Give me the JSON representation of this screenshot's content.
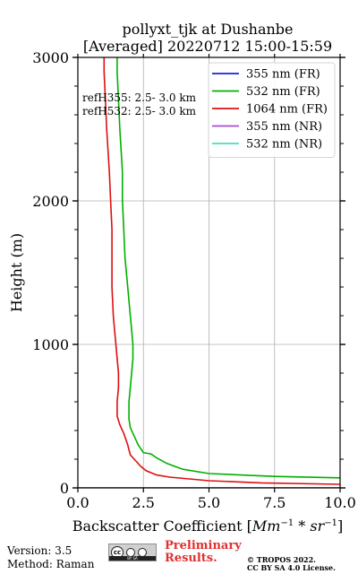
{
  "chart_data": {
    "type": "line",
    "title_lines": [
      "pollyxt_tjk at Dushanbe",
      "[Averaged] 20220712 15:00-15:59"
    ],
    "xlabel_prefix": "Backscatter Coefficient [",
    "xlabel_math": "Mm",
    "xlabel_sup1": "−1",
    "xlabel_mid": " * ",
    "xlabel_math2": "sr",
    "xlabel_sup2": "−1",
    "xlabel_suffix": "]",
    "ylabel": "Height (m)",
    "xlim": [
      0,
      10
    ],
    "ylim": [
      0,
      3000
    ],
    "xticks": [
      "0.0",
      "2.5",
      "5.0",
      "7.5",
      "10.0"
    ],
    "xtick_values": [
      0,
      2.5,
      5,
      7.5,
      10
    ],
    "yticks": [
      "0",
      "1000",
      "2000",
      "3000"
    ],
    "ytick_values": [
      0,
      1000,
      2000,
      3000
    ],
    "grid": true,
    "legend_position": "top-right",
    "annotations": [
      "refH355:  2.5- 3.0 km",
      "refH532:  2.5- 3.0 km"
    ],
    "series": [
      {
        "name": "355 nm (FR)",
        "color": "#1f1fd6",
        "x": [
          0,
          10
        ],
        "y": [
          0,
          0
        ]
      },
      {
        "name": "532 nm (FR)",
        "color": "#00b000",
        "x": [
          10.0,
          7.5,
          5.0,
          4.0,
          3.4,
          3.0,
          2.8,
          2.7,
          2.5,
          2.3,
          2.15,
          2.0,
          1.95,
          1.95,
          2.0,
          2.05,
          2.1,
          2.1,
          2.05,
          2.0,
          1.9,
          1.8,
          1.75,
          1.7,
          1.7,
          1.6,
          1.55,
          1.5,
          1.5
        ],
        "y": [
          70,
          80,
          100,
          130,
          170,
          210,
          235,
          240,
          245,
          300,
          360,
          420,
          480,
          600,
          700,
          800,
          900,
          1000,
          1100,
          1200,
          1400,
          1600,
          1800,
          2000,
          2200,
          2500,
          2700,
          2900,
          3000
        ]
      },
      {
        "name": "1064 nm (FR)",
        "color": "#dd1010",
        "x": [
          10.0,
          7.0,
          5.0,
          3.5,
          3.0,
          2.6,
          2.4,
          2.2,
          2.0,
          1.9,
          1.75,
          1.6,
          1.5,
          1.5,
          1.55,
          1.55,
          1.5,
          1.45,
          1.4,
          1.35,
          1.3,
          1.3,
          1.3,
          1.25,
          1.2,
          1.1,
          1.05,
          1.0,
          1.0
        ],
        "y": [
          25,
          35,
          50,
          75,
          90,
          120,
          150,
          190,
          230,
          300,
          380,
          440,
          500,
          600,
          700,
          800,
          900,
          1000,
          1100,
          1200,
          1400,
          1600,
          1800,
          2000,
          2200,
          2500,
          2700,
          2900,
          3000
        ]
      },
      {
        "name": "355 nm (NR)",
        "color": "#a64bd6",
        "x": [],
        "y": []
      },
      {
        "name": "532 nm (NR)",
        "color": "#40e0c0",
        "x": [],
        "y": []
      }
    ]
  },
  "footer": {
    "version": "Version: 3.5",
    "method": "Method: Raman",
    "license_badge": "cc",
    "license_strip": "BY   SA",
    "preliminary_line1": "Preliminary",
    "preliminary_line2": "Results.",
    "copyright_line1": "© TROPOS 2022.",
    "copyright_line2": "CC BY SA 4.0 License."
  }
}
